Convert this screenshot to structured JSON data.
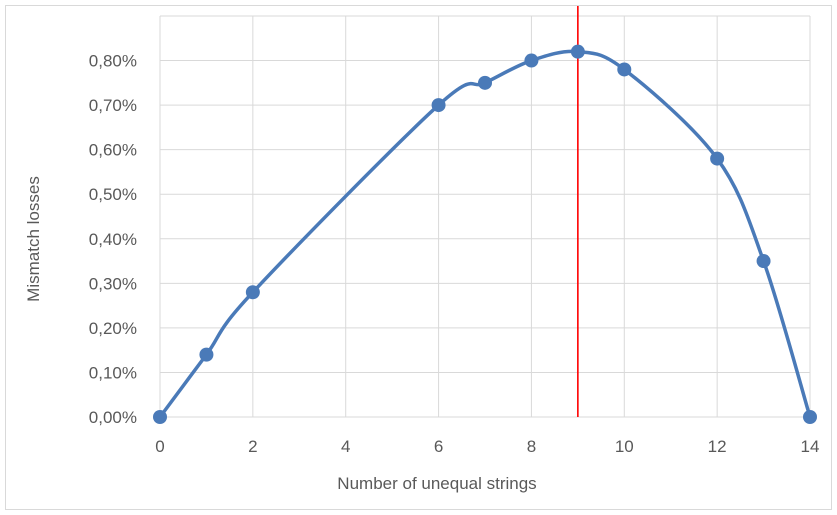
{
  "chart_data": {
    "type": "line",
    "title": "",
    "xlabel": "Number of unequal strings",
    "ylabel": "Mismatch losses",
    "x": [
      0,
      1,
      2,
      6,
      7,
      8,
      9,
      10,
      12,
      13,
      14
    ],
    "series": [
      {
        "values": [
          0.0,
          0.14,
          0.28,
          0.7,
          0.75,
          0.8,
          0.82,
          0.78,
          0.58,
          0.35,
          0.0
        ],
        "color": "#4a7ab8",
        "smooth": true,
        "markers": true
      }
    ],
    "xlim": [
      0,
      14
    ],
    "ylim": [
      0,
      0.9
    ],
    "x_ticks": [
      {
        "value": 0,
        "label": "0"
      },
      {
        "value": 2,
        "label": "2"
      },
      {
        "value": 4,
        "label": "4"
      },
      {
        "value": 6,
        "label": "6"
      },
      {
        "value": 8,
        "label": "8"
      },
      {
        "value": 10,
        "label": "10"
      },
      {
        "value": 12,
        "label": "12"
      },
      {
        "value": 14,
        "label": "14"
      }
    ],
    "y_ticks": [
      {
        "value": 0.0,
        "label": "0,00%"
      },
      {
        "value": 0.1,
        "label": "0,10%"
      },
      {
        "value": 0.2,
        "label": "0,20%"
      },
      {
        "value": 0.3,
        "label": "0,30%"
      },
      {
        "value": 0.4,
        "label": "0,40%"
      },
      {
        "value": 0.5,
        "label": "0,50%"
      },
      {
        "value": 0.6,
        "label": "0,60%"
      },
      {
        "value": 0.7,
        "label": "0,70%"
      },
      {
        "value": 0.8,
        "label": "0,80%"
      }
    ],
    "reference_line": {
      "x": 9,
      "color": "#ff0000"
    },
    "grid": true,
    "legend": "none"
  }
}
